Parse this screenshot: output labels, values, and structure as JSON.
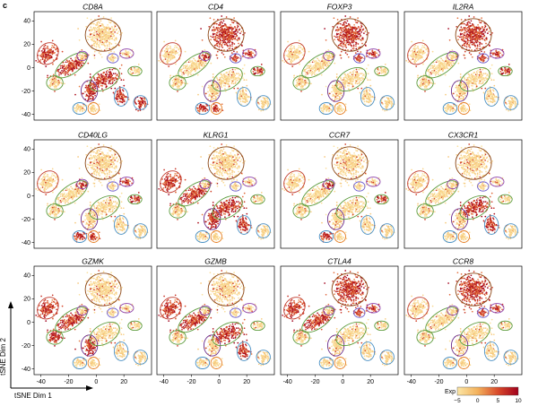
{
  "panel_letter": "c",
  "chart_data": {
    "type": "scatter",
    "description_kind": "tSNE feature plot grid",
    "xlabel": "tSNE Dim 1",
    "ylabel": "tSNE Dim 2",
    "xlim": [
      -45,
      40
    ],
    "ylim": [
      -45,
      48
    ],
    "x_ticks": [
      -40,
      -20,
      0,
      20
    ],
    "y_ticks": [
      -40,
      -20,
      0,
      20,
      40
    ],
    "panels": [
      {
        "gene": "CD8A",
        "high_clusters": [
          "A",
          "B",
          "C",
          "J",
          "K",
          "N"
        ]
      },
      {
        "gene": "CD4",
        "high_clusters": [
          "E",
          "F",
          "G",
          "H",
          "I",
          "L",
          "M"
        ]
      },
      {
        "gene": "FOXP3",
        "high_clusters": [
          "E",
          "F",
          "H"
        ]
      },
      {
        "gene": "IL2RA",
        "high_clusters": [
          "E",
          "F",
          "H",
          "I"
        ]
      },
      {
        "gene": "CD40LG",
        "high_clusters": [
          "G",
          "H",
          "I",
          "L",
          "M"
        ]
      },
      {
        "gene": "KLRG1",
        "high_clusters": [
          "A",
          "B",
          "C",
          "J",
          "K"
        ]
      },
      {
        "gene": "CCR7",
        "high_clusters": [
          "G",
          "I",
          "L"
        ]
      },
      {
        "gene": "CX3CR1",
        "high_clusters": [
          "J",
          "K"
        ]
      },
      {
        "gene": "GZMK",
        "high_clusters": [
          "A",
          "B",
          "C",
          "D"
        ]
      },
      {
        "gene": "GZMB",
        "high_clusters": [
          "A",
          "B",
          "J",
          "K"
        ]
      },
      {
        "gene": "CTLA4",
        "high_clusters": [
          "A",
          "B",
          "E",
          "F",
          "H"
        ]
      },
      {
        "gene": "CCR8",
        "high_clusters": [
          "E",
          "F",
          "H"
        ]
      }
    ],
    "clusters": [
      {
        "id": "A",
        "cx": -35,
        "cy": 12,
        "rx": 7,
        "ry": 10,
        "rot": -40,
        "color": "#c0392b"
      },
      {
        "id": "B",
        "cx": -18,
        "cy": 2,
        "rx": 6,
        "ry": 16,
        "rot": -55,
        "color": "#5a9a3a"
      },
      {
        "id": "C",
        "cx": -5,
        "cy": -20,
        "rx": 6,
        "ry": 9,
        "rot": 0,
        "color": "#6b2b8a"
      },
      {
        "id": "D",
        "cx": -30,
        "cy": -13,
        "rx": 6,
        "ry": 6,
        "rot": 0,
        "color": "#5a9a3a"
      },
      {
        "id": "E",
        "cx": 5,
        "cy": 28,
        "rx": 13,
        "ry": 14,
        "rot": 0,
        "color": "#8b4513"
      },
      {
        "id": "F",
        "cx": 12,
        "cy": 8,
        "rx": 4,
        "ry": 4,
        "rot": 0,
        "color": "#6a5acd"
      },
      {
        "id": "G",
        "cx": -10,
        "cy": 10,
        "rx": 4,
        "ry": 4,
        "rot": 0,
        "color": "#8e44ad"
      },
      {
        "id": "H",
        "cx": 22,
        "cy": 12,
        "rx": 5,
        "ry": 4,
        "rot": 0,
        "color": "#8e44ad"
      },
      {
        "id": "I",
        "cx": 28,
        "cy": -3,
        "rx": 5,
        "ry": 4,
        "rot": 0,
        "color": "#5a9a3a"
      },
      {
        "id": "J",
        "cx": 6,
        "cy": -10,
        "rx": 7,
        "ry": 14,
        "rot": -60,
        "color": "#5a9a3a"
      },
      {
        "id": "K",
        "cx": 18,
        "cy": -25,
        "rx": 5,
        "ry": 8,
        "rot": 0,
        "color": "#4a90c4"
      },
      {
        "id": "L",
        "cx": -12,
        "cy": -35,
        "rx": 5,
        "ry": 5,
        "rot": 0,
        "color": "#4a90c4"
      },
      {
        "id": "M",
        "cx": -2,
        "cy": -35,
        "rx": 4,
        "ry": 5,
        "rot": 0,
        "color": "#e67e22"
      },
      {
        "id": "N",
        "cx": 32,
        "cy": -30,
        "rx": 5,
        "ry": 6,
        "rot": 0,
        "color": "#4a90c4"
      }
    ],
    "colorbar": {
      "label": "Exp",
      "ticks": [
        -5,
        0,
        5,
        10
      ],
      "range": [
        -5,
        10
      ],
      "colors": [
        "#fbe6a6",
        "#f3b15c",
        "#d84a2b",
        "#a1001c"
      ]
    }
  }
}
